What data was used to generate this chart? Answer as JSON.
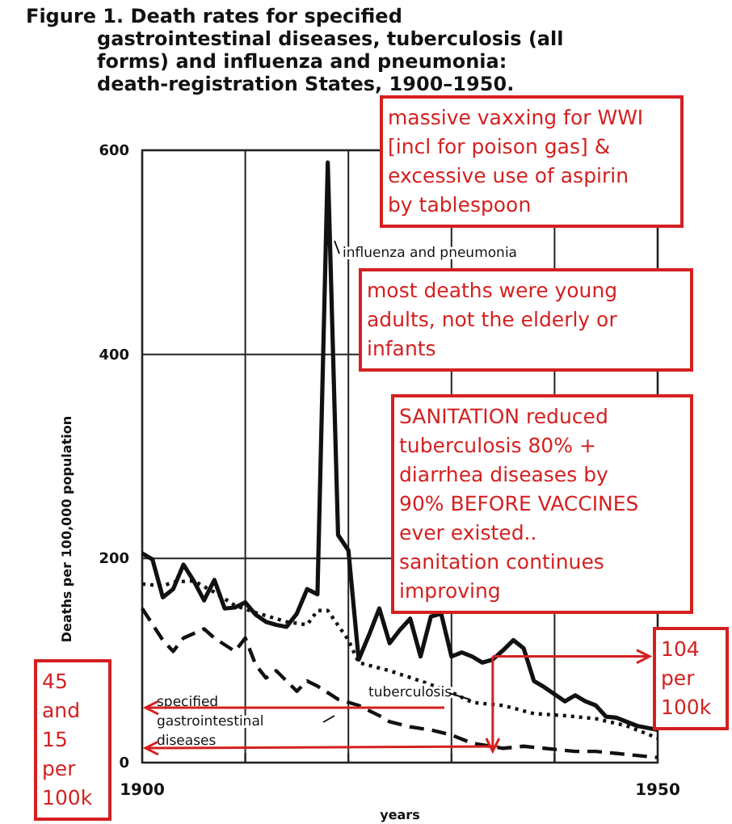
{
  "chart_data": {
    "type": "line",
    "title": "Figure 1.   Death rates for specified gastrointestinal diseases, tuberculosis (all forms) and influenza and pneumonia: death-registration States, 1900–1950.",
    "xlabel": "years",
    "ylabel": "Deaths per 100,000 population",
    "xlim": [
      1900,
      1950
    ],
    "ylim": [
      0,
      600
    ],
    "xticks": [
      1900,
      {
        "value": 1910,
        "label": null
      },
      {
        "value": 1920,
        "label": null
      },
      {
        "value": 1930,
        "label": null
      },
      {
        "value": 1940,
        "label": null
      },
      1950
    ],
    "yticks": [
      0,
      200,
      400,
      600
    ],
    "grid": true,
    "marker": "none",
    "series": [
      {
        "name": "influenza and pneumonia",
        "color": "#111111",
        "line_style": "solid",
        "x": [
          1900,
          1901,
          1902,
          1903,
          1904,
          1905,
          1906,
          1907,
          1908,
          1909,
          1910,
          1911,
          1912,
          1913,
          1914,
          1915,
          1916,
          1917,
          1918,
          1919,
          1920,
          1921,
          1922,
          1923,
          1924,
          1925,
          1926,
          1927,
          1928,
          1929,
          1930,
          1931,
          1932,
          1933,
          1934,
          1935,
          1936,
          1937,
          1938,
          1939,
          1940,
          1941,
          1942,
          1943,
          1944,
          1945,
          1946,
          1947,
          1948,
          1949,
          1950
        ],
        "values": [
          205,
          199,
          162,
          170,
          194,
          178,
          159,
          179,
          151,
          152,
          157,
          145,
          138,
          135,
          133,
          146,
          170,
          165,
          588,
          223,
          208,
          101,
          125,
          151,
          117,
          130,
          141,
          104,
          143,
          146,
          104,
          108,
          104,
          98,
          101,
          110,
          120,
          112,
          80,
          74,
          67,
          60,
          66,
          60,
          56,
          45,
          44,
          40,
          36,
          34,
          32
        ]
      },
      {
        "name": "tuberculosis",
        "color": "#111111",
        "line_style": "dotted",
        "x": [
          1900,
          1902,
          1903,
          1905,
          1907,
          1909,
          1911,
          1914,
          1916,
          1917,
          1918,
          1920,
          1921,
          1924,
          1927,
          1930,
          1932,
          1935,
          1938,
          1941,
          1944,
          1947,
          1950
        ],
        "values": [
          175,
          173,
          177,
          178,
          167,
          154,
          147,
          138,
          135,
          149,
          149,
          120,
          98,
          90,
          80,
          69,
          59,
          56,
          48,
          46,
          43,
          36,
          24
        ]
      },
      {
        "name": "specified gastrointestinal diseases",
        "color": "#111111",
        "line_style": "dashed",
        "x": [
          1900,
          1902,
          1903,
          1904,
          1906,
          1907,
          1909,
          1910,
          1911,
          1912,
          1913,
          1915,
          1916,
          1917,
          1919,
          1921,
          1923,
          1924,
          1926,
          1928,
          1930,
          1932,
          1935,
          1937,
          1939,
          1942,
          1944,
          1950
        ],
        "values": [
          151,
          120,
          109,
          122,
          131,
          122,
          109,
          122,
          96,
          83,
          90,
          70,
          80,
          75,
          62,
          56,
          46,
          40,
          35,
          32,
          27,
          19,
          14,
          16,
          14,
          11,
          11,
          5
        ]
      }
    ],
    "annotations": [
      "massive vaxxing for WWI [incl for poison gas] & excessive use of aspirin by tablespoon",
      "most deaths were young adults, not the elderly or infants",
      "SANITATION reduced tuberculosis 80%  + diarrhea diseases by 90% BEFORE VACCINES ever existed.. sanitation continues improving",
      {
        "text": "104 per 100k",
        "x": 1934,
        "y": 104
      },
      "45 and 15 per 100k"
    ]
  }
}
